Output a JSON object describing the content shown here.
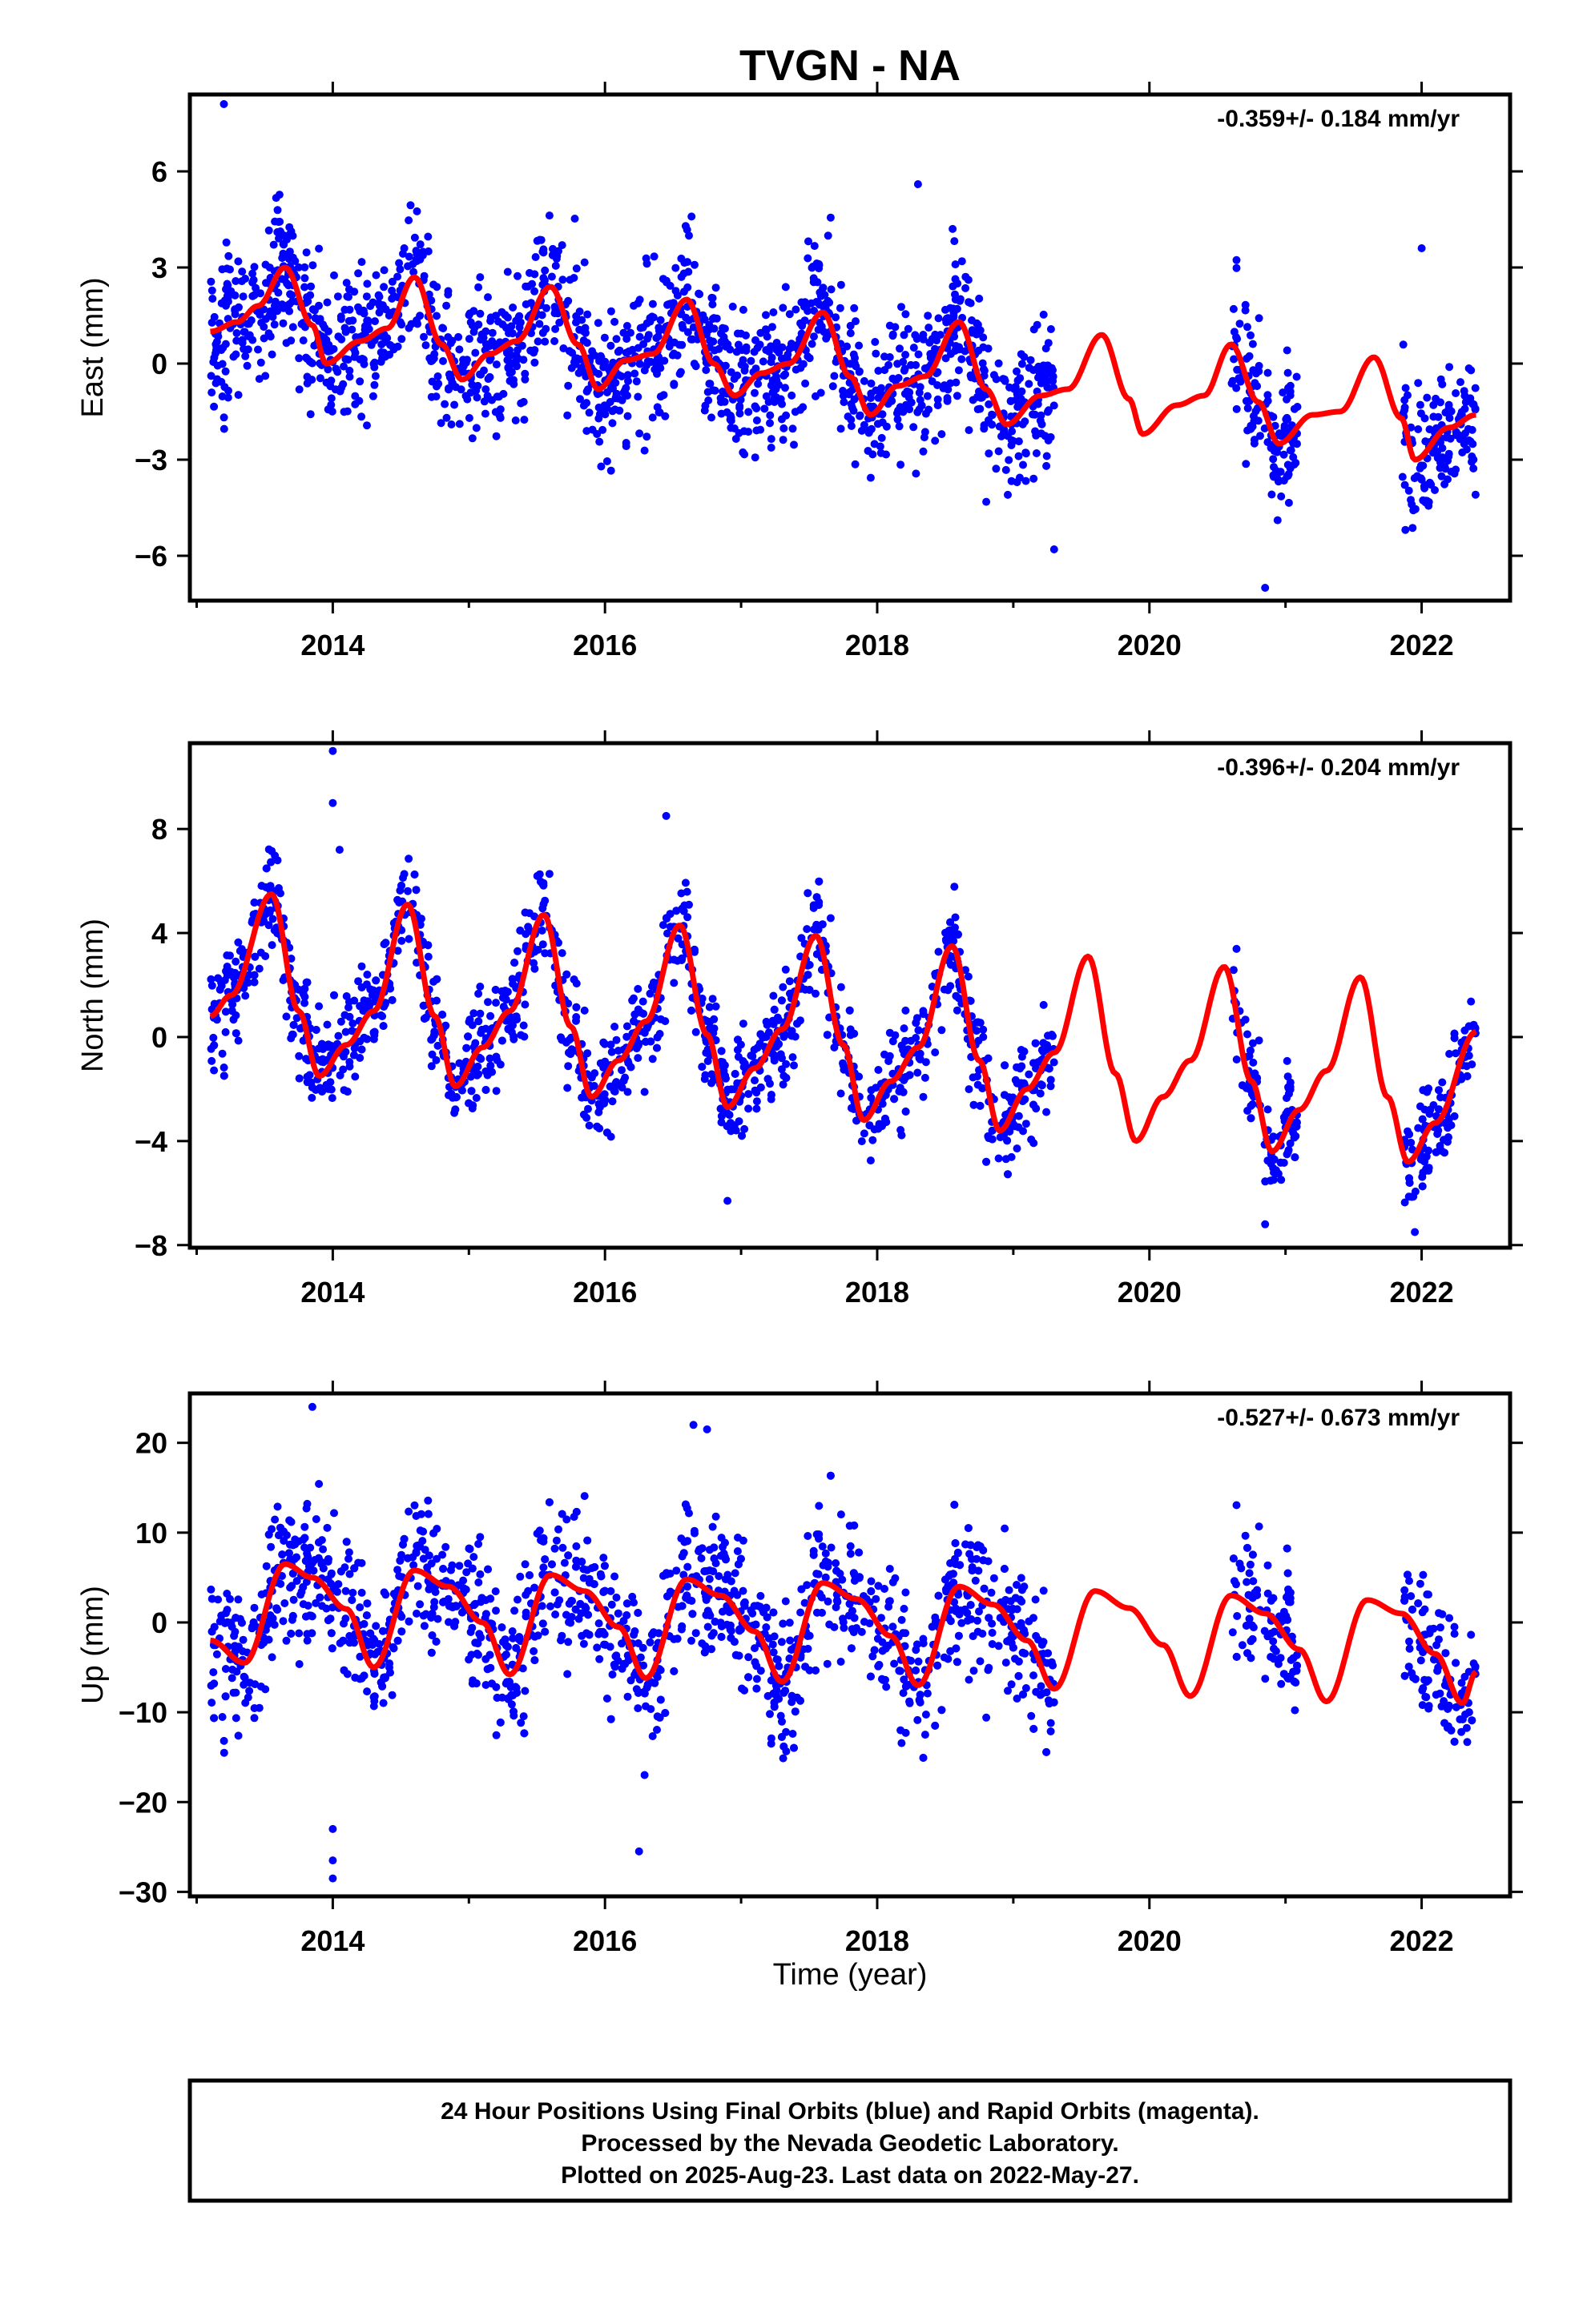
{
  "title": "TVGN - NA",
  "colors": {
    "final_orbits": "#0000ff",
    "model": "#ff0000",
    "frame": "#000000"
  },
  "xaxis": {
    "label": "Time (year)",
    "ticks": [
      2014,
      2016,
      2018,
      2020,
      2022
    ],
    "range": [
      2012.95,
      2022.65
    ]
  },
  "data_span": {
    "start": 2013.1,
    "end": 2022.4,
    "gaps": [
      [
        2019.3,
        2020.6
      ],
      [
        2021.1,
        2021.85
      ]
    ]
  },
  "footer": {
    "lines": [
      "24 Hour Positions Using Final Orbits (blue) and Rapid Orbits (magenta).",
      "Processed by the Nevada Geodetic Laboratory.",
      "Plotted on 2025-Aug-23. Last data on 2022-May-27."
    ]
  },
  "chart_data": [
    {
      "type": "scatter",
      "component": "east",
      "ylabel": "East (mm)",
      "rate_text": "-0.359+/- 0.184 mm/yr",
      "ylim": [
        -7.4,
        8.4
      ],
      "yticks": [
        -6,
        -3,
        0,
        3,
        6
      ],
      "ytick_labels": [
        "−6",
        "−3",
        "0",
        "3",
        "6"
      ],
      "model_curve": {
        "x": [
          2013.1,
          2013.3,
          2013.45,
          2013.65,
          2013.85,
          2013.95,
          2014.2,
          2014.4,
          2014.6,
          2014.8,
          2014.95,
          2015.15,
          2015.35,
          2015.6,
          2015.8,
          2015.95,
          2016.15,
          2016.35,
          2016.6,
          2016.8,
          2016.95,
          2017.15,
          2017.35,
          2017.6,
          2017.8,
          2017.95,
          2018.15,
          2018.35,
          2018.6,
          2018.8,
          2018.95,
          2019.2,
          2019.4,
          2019.65,
          2019.85,
          2019.95,
          2020.2,
          2020.4,
          2020.6,
          2020.8,
          2020.95,
          2021.2,
          2021.4,
          2021.65,
          2021.85,
          2021.95,
          2022.2,
          2022.4
        ],
        "y": [
          1.0,
          1.3,
          1.8,
          3.0,
          1.2,
          0.0,
          0.7,
          1.1,
          2.7,
          0.6,
          -0.5,
          0.3,
          0.7,
          2.4,
          0.6,
          -0.8,
          0.1,
          0.3,
          2.0,
          0.0,
          -1.0,
          -0.3,
          0.0,
          1.6,
          -0.4,
          -1.6,
          -0.7,
          -0.4,
          1.3,
          -0.8,
          -1.9,
          -1.0,
          -0.8,
          0.9,
          -1.1,
          -2.2,
          -1.3,
          -1.0,
          0.6,
          -1.2,
          -2.5,
          -1.6,
          -1.5,
          0.2,
          -1.7,
          -3.0,
          -2.0,
          -1.6
        ]
      },
      "scatter": {
        "n": 2400,
        "noise_sd": 1.1,
        "outliers": [
          [
            2013.2,
            8.1
          ],
          [
            2018.3,
            5.6
          ],
          [
            2019.3,
            -5.8
          ],
          [
            2020.85,
            -7.0
          ],
          [
            2022.0,
            3.6
          ]
        ]
      }
    },
    {
      "type": "scatter",
      "component": "north",
      "ylabel": "North (mm)",
      "rate_text": "-0.396+/- 0.204 mm/yr",
      "ylim": [
        -8.1,
        11.3
      ],
      "yticks": [
        -8,
        -4,
        0,
        4,
        8
      ],
      "ytick_labels": [
        "−8",
        "−4",
        "0",
        "4",
        "8"
      ],
      "model_curve": {
        "x": [
          2013.1,
          2013.25,
          2013.55,
          2013.75,
          2013.9,
          2014.1,
          2014.3,
          2014.55,
          2014.75,
          2014.9,
          2015.1,
          2015.3,
          2015.55,
          2015.75,
          2015.9,
          2016.1,
          2016.3,
          2016.55,
          2016.75,
          2016.9,
          2017.1,
          2017.3,
          2017.55,
          2017.75,
          2017.9,
          2018.1,
          2018.3,
          2018.55,
          2018.75,
          2018.9,
          2019.1,
          2019.3,
          2019.55,
          2019.75,
          2019.9,
          2020.1,
          2020.3,
          2020.55,
          2020.75,
          2020.9,
          2021.1,
          2021.3,
          2021.55,
          2021.75,
          2021.9,
          2022.1,
          2022.4
        ],
        "y": [
          0.8,
          1.6,
          5.5,
          1.0,
          -1.5,
          -0.3,
          1.0,
          5.1,
          0.8,
          -1.9,
          -0.4,
          1.0,
          4.7,
          0.4,
          -2.3,
          -0.9,
          0.6,
          4.3,
          0.1,
          -2.7,
          -1.2,
          0.3,
          3.9,
          -0.3,
          -3.2,
          -1.7,
          -0.4,
          3.5,
          -0.9,
          -3.6,
          -2.0,
          -0.6,
          3.1,
          -1.4,
          -4.0,
          -2.3,
          -0.9,
          2.7,
          -1.7,
          -4.4,
          -2.8,
          -1.3,
          2.3,
          -2.3,
          -4.8,
          -3.3,
          0.2
        ]
      },
      "scatter": {
        "n": 2400,
        "noise_sd": 1.0,
        "outliers": [
          [
            2014.0,
            11.0
          ],
          [
            2014.0,
            9.0
          ],
          [
            2014.05,
            7.2
          ],
          [
            2016.45,
            8.5
          ],
          [
            2016.9,
            -6.3
          ],
          [
            2020.85,
            -7.2
          ],
          [
            2021.95,
            -7.5
          ]
        ]
      }
    },
    {
      "type": "scatter",
      "component": "up",
      "ylabel": "Up (mm)",
      "rate_text": "-0.527+/- 0.673 mm/yr",
      "ylim": [
        -30.5,
        25.5
      ],
      "yticks": [
        -30,
        -20,
        -10,
        0,
        10,
        20
      ],
      "ytick_labels": [
        "−30",
        "−20",
        "−10",
        "0",
        "10",
        "20"
      ],
      "model_curve": {
        "x": [
          2013.1,
          2013.35,
          2013.65,
          2013.85,
          2014.1,
          2014.3,
          2014.6,
          2014.85,
          2015.1,
          2015.3,
          2015.6,
          2015.85,
          2016.1,
          2016.3,
          2016.6,
          2016.85,
          2017.1,
          2017.3,
          2017.6,
          2017.85,
          2018.1,
          2018.3,
          2018.6,
          2018.85,
          2019.1,
          2019.3,
          2019.6,
          2019.85,
          2020.1,
          2020.3,
          2020.6,
          2020.85,
          2021.1,
          2021.3,
          2021.6,
          2021.85,
          2022.1,
          2022.3,
          2022.4
        ],
        "y": [
          -2.0,
          -4.5,
          6.5,
          5.0,
          1.5,
          -5.0,
          5.8,
          4.0,
          0.0,
          -5.8,
          5.3,
          3.5,
          -0.5,
          -6.2,
          4.8,
          3.0,
          -1.0,
          -6.6,
          4.4,
          2.6,
          -1.5,
          -7.0,
          4.0,
          2.0,
          -2.0,
          -7.4,
          3.5,
          1.6,
          -2.5,
          -8.2,
          3.0,
          1.0,
          -3.0,
          -8.8,
          2.5,
          1.0,
          -3.5,
          -9.0,
          -5.5
        ]
      },
      "scatter": {
        "n": 2400,
        "noise_sd": 4.0,
        "outliers": [
          [
            2013.85,
            24.0
          ],
          [
            2014.0,
            -23.0
          ],
          [
            2014.0,
            -26.5
          ],
          [
            2014.0,
            -28.5
          ],
          [
            2016.25,
            -25.5
          ],
          [
            2016.65,
            22.0
          ],
          [
            2016.75,
            21.5
          ]
        ]
      }
    }
  ]
}
